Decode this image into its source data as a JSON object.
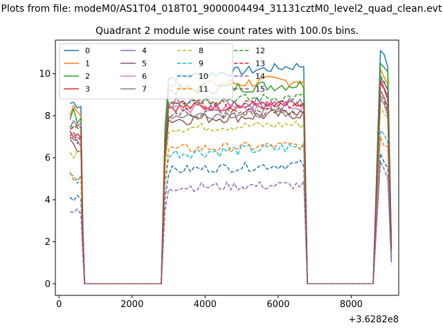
{
  "figure": {
    "suptitle": "Plots from file: modeM0/AS1T04_018T01_9000004494_31131cztM0_level2_quad_clean.evt",
    "offset_label": "+3.6282e8"
  },
  "chart_data": {
    "type": "line",
    "title": "Quadrant 2 module wise count rates with 100.0s bins.",
    "xlabel": "",
    "ylabel": "",
    "xlim": [
      -100,
      9300
    ],
    "ylim": [
      -0.55,
      11.6
    ],
    "x_offset": 362820000,
    "x_offset_label": "+3.6282e8",
    "xticks": [
      0,
      2000,
      4000,
      6000,
      8000
    ],
    "xtick_labels": [
      "0",
      "2000",
      "4000",
      "6000",
      "8000"
    ],
    "yticks": [
      0,
      2,
      4,
      6,
      8,
      10
    ],
    "ytick_labels": [
      "0",
      "2",
      "4",
      "6",
      "8",
      "10"
    ],
    "grid": false,
    "legend_position": "top-left",
    "legend_columns": 4,
    "segments": [
      {
        "start": 300,
        "end": 700
      },
      {
        "start": 2800,
        "end": 6800
      },
      {
        "start": 8600,
        "end": 9100
      }
    ],
    "series": [
      {
        "name": "0",
        "color": "#1f77b4",
        "dash": "solid",
        "level": 9.8,
        "jitter": 0.2,
        "trend": 0.6,
        "spike": 11.1
      },
      {
        "name": "1",
        "color": "#ff7f0e",
        "dash": "solid",
        "level": 9.4,
        "jitter": 0.25,
        "trend": 0.3,
        "spike": 10.2
      },
      {
        "name": "2",
        "color": "#2ca02c",
        "dash": "solid",
        "level": 9.2,
        "jitter": 0.25,
        "trend": 0.3,
        "spike": 10.5
      },
      {
        "name": "3",
        "color": "#d62728",
        "dash": "solid",
        "level": 8.4,
        "jitter": 0.2,
        "trend": 0.1,
        "spike": 9.7
      },
      {
        "name": "4",
        "color": "#9467bd",
        "dash": "solid",
        "level": 8.6,
        "jitter": 0.25,
        "trend": 0.0,
        "spike": 9.8
      },
      {
        "name": "5",
        "color": "#8c564b",
        "dash": "solid",
        "level": 7.8,
        "jitter": 0.25,
        "trend": 0.3,
        "spike": 9.2
      },
      {
        "name": "6",
        "color": "#e377c2",
        "dash": "solid",
        "level": 8.3,
        "jitter": 0.25,
        "trend": 0.2,
        "spike": 9.5
      },
      {
        "name": "7",
        "color": "#7f7f7f",
        "dash": "solid",
        "level": 8.0,
        "jitter": 0.2,
        "trend": 0.2,
        "spike": 8.8
      },
      {
        "name": "8",
        "color": "#bcbd22",
        "dash": "dashed",
        "level": 7.4,
        "jitter": 0.2,
        "trend": 0.2,
        "spike": 8.4
      },
      {
        "name": "9",
        "color": "#17becf",
        "dash": "dashed",
        "level": 6.2,
        "jitter": 0.25,
        "trend": 0.3,
        "spike": 7.3
      },
      {
        "name": "10",
        "color": "#1f77b4",
        "dash": "dashed",
        "level": 5.4,
        "jitter": 0.2,
        "trend": 0.3,
        "spike": 6.2
      },
      {
        "name": "11",
        "color": "#ff7f0e",
        "dash": "dashed",
        "level": 6.4,
        "jitter": 0.2,
        "trend": 0.2,
        "spike": 7.0
      },
      {
        "name": "12",
        "color": "#2ca02c",
        "dash": "dashed",
        "level": 8.7,
        "jitter": 0.2,
        "trend": 0.2,
        "spike": 9.9
      },
      {
        "name": "13",
        "color": "#d62728",
        "dash": "dashed",
        "level": 8.5,
        "jitter": 0.2,
        "trend": 0.1,
        "spike": 9.6
      },
      {
        "name": "14",
        "color": "#9467bd",
        "dash": "dashed",
        "level": 4.6,
        "jitter": 0.2,
        "trend": 0.1,
        "spike": 5.8
      },
      {
        "name": "15",
        "color": "#8c564b",
        "dash": "dashed",
        "level": 8.1,
        "jitter": 0.25,
        "trend": 0.1,
        "spike": 9.0
      }
    ]
  }
}
